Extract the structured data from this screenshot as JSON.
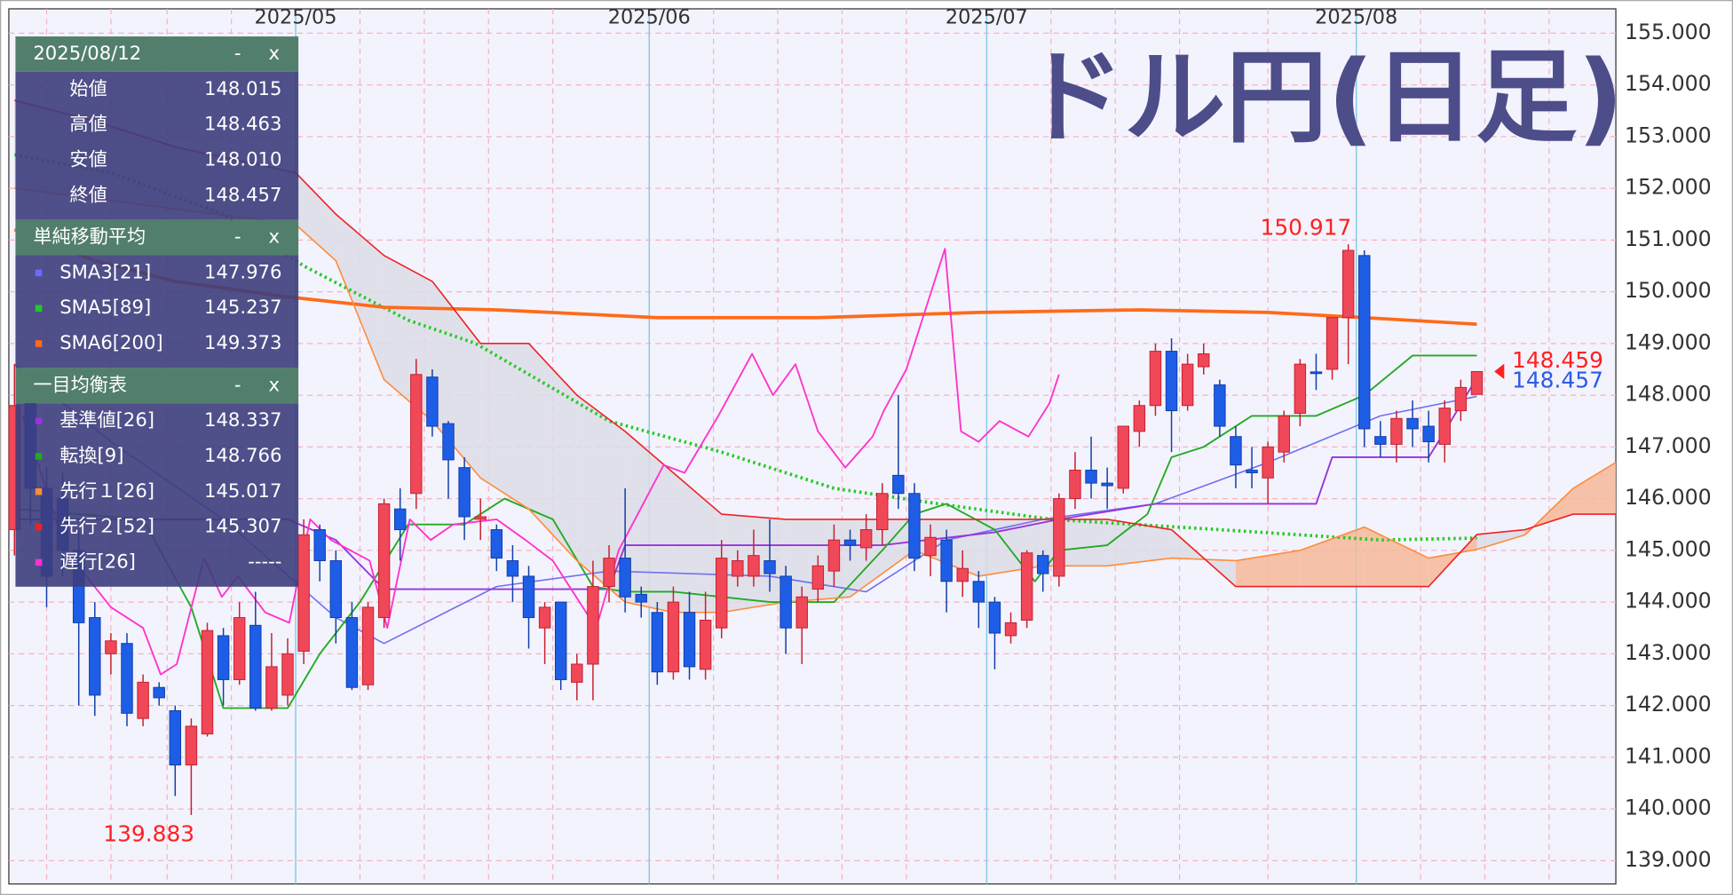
{
  "chart_data": {
    "type": "candlestick",
    "title": "ドル円(日足)",
    "xlim": [
      -0.35,
      99.65
    ],
    "ylim": [
      138.55,
      155.47
    ],
    "xticks": [
      {
        "value": 17.5,
        "label": "2025/05"
      },
      {
        "value": 39.5,
        "label": "2025/06"
      },
      {
        "value": 60.5,
        "label": "2025/07"
      },
      {
        "value": 83.5,
        "label": "2025/08"
      }
    ],
    "xgrid": [
      2,
      6,
      9.5,
      13.5,
      21.5,
      25.5,
      29.5,
      33.5,
      43.5,
      47.5,
      51.5,
      55.5,
      64.5,
      68.5,
      72.5,
      78,
      87.5,
      91.5,
      95.5
    ],
    "yticks": [
      {
        "value": 139,
        "label": "139.000"
      },
      {
        "value": 140,
        "label": "140.000"
      },
      {
        "value": 141,
        "label": "141.000"
      },
      {
        "value": 142,
        "label": "142.000"
      },
      {
        "value": 143,
        "label": "143.000"
      },
      {
        "value": 144,
        "label": "144.000"
      },
      {
        "value": 145,
        "label": "145.000"
      },
      {
        "value": 146,
        "label": "146.000"
      },
      {
        "value": 147,
        "label": "147.000"
      },
      {
        "value": 148,
        "label": "148.000"
      },
      {
        "value": 149,
        "label": "149.000"
      },
      {
        "value": 150,
        "label": "150.000"
      },
      {
        "value": 151,
        "label": "151.000"
      },
      {
        "value": 152,
        "label": "152.000"
      },
      {
        "value": 153,
        "label": "153.000"
      },
      {
        "value": 154,
        "label": "154.000"
      },
      {
        "value": 155,
        "label": "155.000"
      }
    ],
    "grid": true,
    "up_color": "#f04858",
    "down_color": "#1e5ee6",
    "candles": {
      "open": [
        145.4,
        147.9,
        146.2,
        146.0,
        145.0,
        143.7,
        143.0,
        143.2,
        141.75,
        142.35,
        141.9,
        140.85,
        141.45,
        143.35,
        142.5,
        143.55,
        141.95,
        142.2,
        143.05,
        145.4,
        144.8,
        143.7,
        142.4,
        143.7,
        145.8,
        146.1,
        148.35,
        147.45,
        146.6,
        145.6,
        145.4,
        144.8,
        144.5,
        143.5,
        144.0,
        142.45,
        142.8,
        144.3,
        144.85,
        144.15,
        143.8,
        142.65,
        143.8,
        142.7,
        143.5,
        144.5,
        144.5,
        144.8,
        144.5,
        143.5,
        144.25,
        144.6,
        145.2,
        145.05,
        145.4,
        146.45,
        146.1,
        144.9,
        145.2,
        144.4,
        144.4,
        144.0,
        143.35,
        143.65,
        144.9,
        144.5,
        146.0,
        146.55,
        146.3,
        146.2,
        147.3,
        147.8,
        148.85,
        147.8,
        148.55,
        148.2,
        147.2,
        146.55,
        146.4,
        146.9,
        147.65,
        148.45,
        148.5,
        149.5,
        150.7,
        147.2,
        147.05,
        147.55,
        147.4,
        147.05,
        147.7,
        148.015
      ],
      "high": [
        148.6,
        148.2,
        146.6,
        146.5,
        145.4,
        144.0,
        143.4,
        143.4,
        142.6,
        142.45,
        142.0,
        141.75,
        143.6,
        143.5,
        144.0,
        144.2,
        143.4,
        143.3,
        145.6,
        145.5,
        145.0,
        144.0,
        144.0,
        146.0,
        146.2,
        148.7,
        148.5,
        147.5,
        146.8,
        146.0,
        145.5,
        145.1,
        144.7,
        144.0,
        144.0,
        143.0,
        144.8,
        145.1,
        146.2,
        144.3,
        144.0,
        144.3,
        144.2,
        144.2,
        145.2,
        145.0,
        145.4,
        145.6,
        144.7,
        144.3,
        144.9,
        145.5,
        145.4,
        145.7,
        146.3,
        148.0,
        146.3,
        145.5,
        145.4,
        145.0,
        144.6,
        144.1,
        143.8,
        145.0,
        145.0,
        146.1,
        146.9,
        147.2,
        146.6,
        147.4,
        147.9,
        149.0,
        149.1,
        148.8,
        149.0,
        148.3,
        147.4,
        147.0,
        147.1,
        147.7,
        148.7,
        148.8,
        149.5,
        150.917,
        150.8,
        147.5,
        147.7,
        147.9,
        147.7,
        147.9,
        148.3,
        148.463
      ],
      "low": [
        144.9,
        145.5,
        143.9,
        144.5,
        142.0,
        141.8,
        142.6,
        141.6,
        141.6,
        142.0,
        140.25,
        139.883,
        141.4,
        142.0,
        142.4,
        141.9,
        141.9,
        142.0,
        142.8,
        144.4,
        143.2,
        142.3,
        142.3,
        143.5,
        144.8,
        145.8,
        147.2,
        146.0,
        145.2,
        145.2,
        144.6,
        144.0,
        143.1,
        142.8,
        142.3,
        142.1,
        142.1,
        144.0,
        143.8,
        143.7,
        142.4,
        142.5,
        142.5,
        142.5,
        143.3,
        144.3,
        144.3,
        144.2,
        143.0,
        142.8,
        144.0,
        144.3,
        144.8,
        144.8,
        145.1,
        145.8,
        144.6,
        144.5,
        143.8,
        144.1,
        143.5,
        142.7,
        143.2,
        143.5,
        144.2,
        144.3,
        145.8,
        146.0,
        145.8,
        146.1,
        147.0,
        147.6,
        146.9,
        147.7,
        148.4,
        147.2,
        146.2,
        146.2,
        145.9,
        146.7,
        147.4,
        148.1,
        148.3,
        148.6,
        147.0,
        146.8,
        146.7,
        147.0,
        146.7,
        146.7,
        147.5,
        148.01
      ],
      "close": [
        147.8,
        146.2,
        144.5,
        145.0,
        143.6,
        142.2,
        143.25,
        141.85,
        142.45,
        142.15,
        140.85,
        141.6,
        143.45,
        142.5,
        143.7,
        141.95,
        142.75,
        143.0,
        145.3,
        144.8,
        143.7,
        142.35,
        143.9,
        145.9,
        145.4,
        148.4,
        147.4,
        146.75,
        145.65,
        145.65,
        144.85,
        144.5,
        143.7,
        143.9,
        142.5,
        142.8,
        144.3,
        144.85,
        144.1,
        144.0,
        142.65,
        144.0,
        142.75,
        143.65,
        144.85,
        144.8,
        144.9,
        144.55,
        143.5,
        144.1,
        144.7,
        145.2,
        145.1,
        145.4,
        146.1,
        146.1,
        144.85,
        145.25,
        144.4,
        144.65,
        144.0,
        143.4,
        143.6,
        144.95,
        144.55,
        146.0,
        146.55,
        146.3,
        146.25,
        147.4,
        147.8,
        148.85,
        147.7,
        148.6,
        148.8,
        147.4,
        146.65,
        146.5,
        147.0,
        147.6,
        148.6,
        148.42,
        149.5,
        150.8,
        147.35,
        147.05,
        147.55,
        147.35,
        147.1,
        147.75,
        148.15,
        148.457
      ]
    },
    "series": [
      {
        "color": "#7070f0",
        "width": 1.3,
        "style": "solid",
        "x": [
          0,
          6,
          13,
          20,
          23,
          30,
          37,
          47,
          53,
          58,
          64,
          71,
          78,
          85,
          91
        ],
        "values": [
          148.6,
          147.1,
          145.6,
          143.7,
          143.2,
          144.3,
          144.6,
          144.5,
          144.2,
          145.2,
          145.6,
          145.9,
          146.7,
          147.6,
          147.976
        ]
      },
      {
        "color": "#22cc22",
        "width": 3,
        "style": "dotted",
        "x": [
          0,
          6,
          13,
          18,
          24.5,
          28.7,
          37,
          44,
          51,
          57.5,
          64.5,
          75,
          85,
          91
        ],
        "values": [
          152.65,
          152.3,
          151.5,
          150.5,
          149.45,
          149.0,
          147.5,
          146.9,
          146.2,
          145.9,
          145.6,
          145.4,
          145.2,
          145.237
        ]
      },
      {
        "color": "#ff6a1a",
        "width": 3,
        "style": "solid",
        "x": [
          0,
          5,
          10,
          17,
          23,
          30,
          40,
          50,
          60,
          70,
          78,
          84,
          91
        ],
        "values": [
          151.2,
          150.6,
          150.2,
          149.9,
          149.7,
          149.65,
          149.5,
          149.5,
          149.6,
          149.65,
          149.6,
          149.5,
          149.373
        ]
      },
      {
        "color": "#9933dd",
        "width": 1.5,
        "style": "solid",
        "x": [
          0,
          17,
          20,
          23,
          37,
          38,
          54,
          61,
          65,
          71,
          81,
          82,
          88,
          89,
          91
        ],
        "values": [
          145.6,
          145.6,
          145.2,
          144.25,
          144.25,
          145.1,
          145.1,
          145.35,
          145.6,
          145.9,
          145.9,
          146.8,
          146.8,
          147.3,
          148.337
        ]
      },
      {
        "color": "#22aa22",
        "width": 1.5,
        "style": "solid",
        "x": [
          0,
          8,
          11,
          13,
          17,
          19,
          21.5,
          24.5,
          28,
          30.5,
          33.5,
          36,
          38,
          41,
          47,
          51,
          54,
          56,
          58,
          61,
          63.5,
          65,
          68,
          70.5,
          72,
          74,
          77,
          81,
          84,
          87,
          91
        ],
        "values": [
          145.8,
          145.6,
          143.9,
          141.95,
          141.95,
          143.0,
          144.0,
          145.5,
          145.5,
          146.0,
          145.6,
          144.3,
          144.2,
          144.2,
          144.0,
          144.0,
          145.0,
          145.7,
          145.9,
          145.4,
          144.4,
          145.0,
          145.1,
          145.7,
          146.8,
          147.0,
          147.6,
          147.6,
          148.0,
          148.766,
          148.766
        ]
      },
      {
        "color": "#ff8c3a",
        "width": 1.3,
        "style": "solid",
        "x": [
          0,
          5,
          10,
          17.5,
          20,
          23,
          26,
          29,
          32,
          35,
          38,
          41,
          44,
          48,
          52,
          56,
          60,
          64,
          68,
          72,
          76,
          80,
          84,
          88,
          91,
          94,
          97,
          99.65
        ],
        "values": [
          152.0,
          151.8,
          151.6,
          151.3,
          150.6,
          148.3,
          147.5,
          146.4,
          145.8,
          144.8,
          144.0,
          143.8,
          143.8,
          144.0,
          144.1,
          145.0,
          144.5,
          144.7,
          144.7,
          144.85,
          144.8,
          145.0,
          145.45,
          144.85,
          145.017,
          145.3,
          146.2,
          146.7
        ]
      },
      {
        "color": "#ee2222",
        "width": 1.3,
        "style": "solid",
        "x": [
          0,
          5,
          10,
          17.5,
          20,
          23,
          26,
          29,
          32,
          35,
          38,
          41,
          44,
          48,
          52,
          56,
          60,
          64,
          68,
          72,
          76,
          80,
          84,
          88,
          91,
          94,
          97,
          99.65
        ],
        "values": [
          153.7,
          153.3,
          152.8,
          152.3,
          151.5,
          150.7,
          150.2,
          149.0,
          149.0,
          148.0,
          147.3,
          146.5,
          145.7,
          145.6,
          145.6,
          145.6,
          145.6,
          145.6,
          145.6,
          145.4,
          144.3,
          144.3,
          144.3,
          144.3,
          145.307,
          145.4,
          145.7,
          145.7
        ]
      },
      {
        "color": "#ff33cc",
        "width": 1.5,
        "style": "solid",
        "x": [
          0.5,
          3.2,
          6,
          8,
          9.1,
          10.1,
          11.8,
          12.9,
          13.9,
          15.6,
          17.1,
          18.4,
          19.7,
          22.1,
          23.2,
          24.6,
          25.9,
          27.3,
          30,
          31.8,
          33.5,
          36.2,
          37.6,
          40.4,
          41.7,
          43.8,
          45.9,
          47.2,
          48.6,
          50,
          51.7,
          53.4,
          54.1,
          55.5,
          57.9,
          58.9,
          60,
          61.3,
          63.1,
          64.4,
          65
        ],
        "values": [
          147.6,
          145.0,
          143.9,
          143.5,
          142.6,
          142.8,
          144.85,
          144.1,
          144.5,
          143.8,
          143.6,
          145.6,
          145.2,
          144.8,
          143.5,
          145.6,
          145.2,
          145.5,
          145.6,
          145.2,
          144.8,
          143.5,
          145.0,
          146.65,
          146.5,
          147.6,
          148.8,
          148.0,
          148.6,
          147.3,
          146.6,
          147.2,
          147.7,
          148.5,
          150.83,
          147.3,
          147.1,
          147.5,
          147.2,
          147.84,
          148.4
        ]
      }
    ],
    "cloud": {
      "series": [
        5,
        6
      ],
      "bullish_color": "#f6b79a",
      "bearish_color": "#dcdce6"
    },
    "annotations": [
      {
        "value": 150.917,
        "x": 83,
        "position": "above",
        "color": "#ff2020"
      },
      {
        "value": 139.883,
        "x": 11,
        "position": "below",
        "color": "#ff2020"
      }
    ],
    "price_tags": [
      {
        "value": 148.459,
        "color": "#ff2020"
      },
      {
        "value": 148.457,
        "color": "#2a5ae8"
      }
    ]
  },
  "panel": {
    "sections": [
      {
        "title": "2025/08/12",
        "minimize": "-",
        "close": "x",
        "rows": [
          {
            "label": "始値",
            "value": "148.015"
          },
          {
            "label": "高値",
            "value": "148.463"
          },
          {
            "label": "安値",
            "value": "148.010"
          },
          {
            "label": "終値",
            "value": "148.457"
          }
        ]
      },
      {
        "title": "単純移動平均",
        "minimize": "-",
        "close": "x",
        "rows": [
          {
            "label": "SMA3[21]",
            "value": "147.976",
            "color": "#6a6aff"
          },
          {
            "label": "SMA5[89]",
            "value": "145.237",
            "color": "#22cc22"
          },
          {
            "label": "SMA6[200]",
            "value": "149.373",
            "color": "#ff6a1a"
          }
        ]
      },
      {
        "title": "一目均衡表",
        "minimize": "-",
        "close": "x",
        "rows": [
          {
            "label": "基準値[26]",
            "value": "148.337",
            "color": "#9933dd"
          },
          {
            "label": "転換[9]",
            "value": "148.766",
            "color": "#22aa22"
          },
          {
            "label": "先行１[26]",
            "value": "145.017",
            "color": "#ff8c3a"
          },
          {
            "label": "先行２[52]",
            "value": "145.307",
            "color": "#ee2222"
          },
          {
            "label": "遅行[26]",
            "value": "-----",
            "color": "#ff33cc"
          }
        ]
      }
    ]
  }
}
